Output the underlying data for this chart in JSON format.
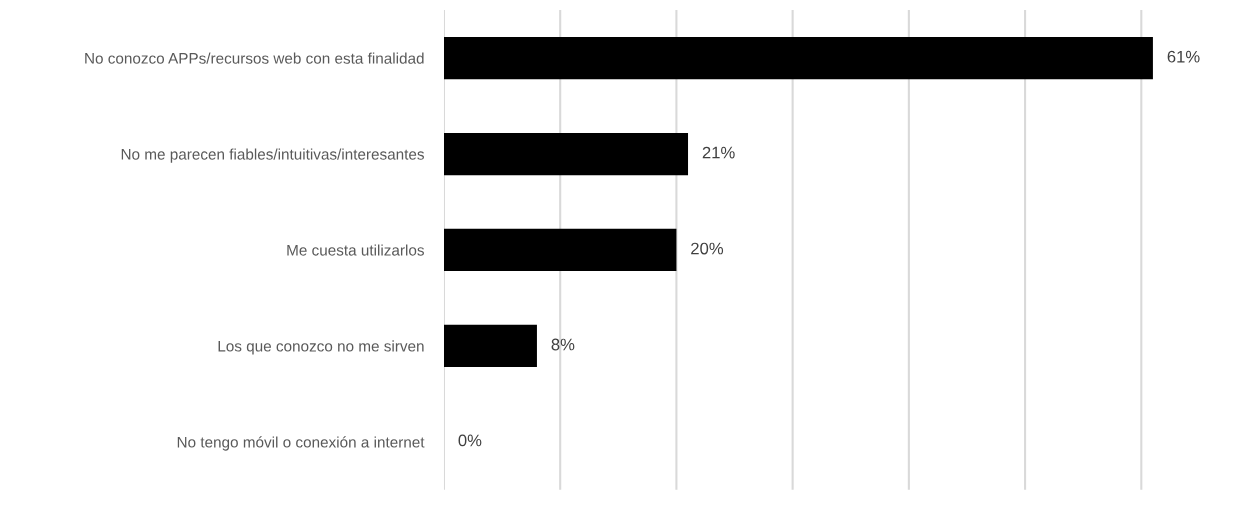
{
  "chart_data": {
    "type": "bar",
    "orientation": "horizontal",
    "categories": [
      "No conozco APPs/recursos web con esta finalidad",
      "No me parecen fiables/intuitivas/interesantes",
      "Me cuesta utilizarlos",
      "Los que conozco no me sirven",
      "No tengo móvil o conexión a internet"
    ],
    "values": [
      61,
      21,
      20,
      8,
      0
    ],
    "color": "#000000",
    "value_labels": [
      "61%",
      "21%",
      "20%",
      "8%",
      "0%"
    ],
    "xticks": [
      {
        "value": 0,
        "label": null
      },
      {
        "value": 10,
        "label": null
      },
      {
        "value": 20,
        "label": null
      },
      {
        "value": 30,
        "label": null
      },
      {
        "value": 40,
        "label": null
      },
      {
        "value": 50,
        "label": null
      },
      {
        "value": 60,
        "label": null
      }
    ],
    "grid": "x",
    "tick_labels": "y",
    "legend": false
  }
}
